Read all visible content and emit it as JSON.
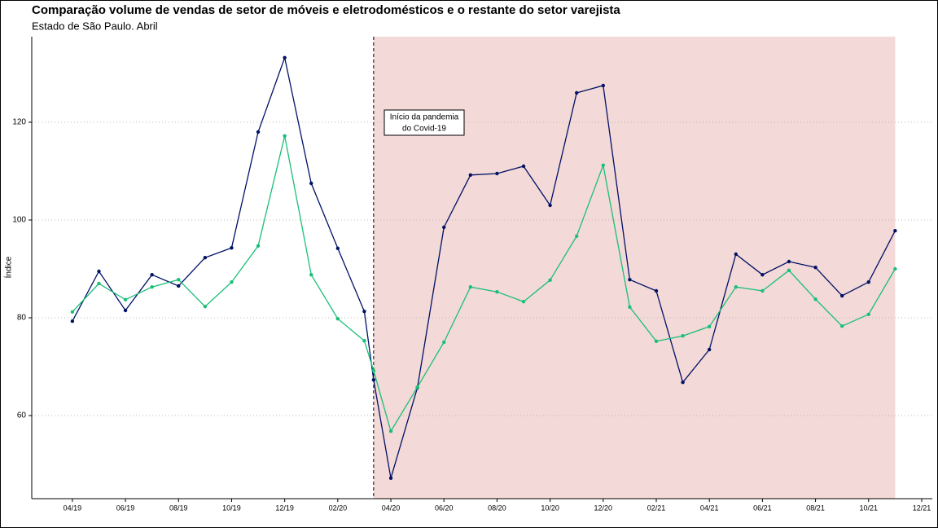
{
  "chart_data": {
    "type": "line",
    "title": "Comparação volume de vendas de setor de móveis e eletrodomésticos e o restante do setor varejista",
    "subtitle": "Estado de São Paulo. Abril",
    "y_label": "Índice",
    "annotation": [
      "Início da pandemia",
      "do Covid-19"
    ],
    "vline": 11.35,
    "shade": [
      11.35,
      31
    ],
    "shade_color": "#f3d9d7",
    "x": [
      0,
      1,
      2,
      3,
      4,
      5,
      6,
      7,
      8,
      9,
      10,
      11,
      11.35,
      12,
      13,
      14,
      15,
      16,
      17,
      18,
      19,
      20,
      21,
      22,
      23,
      24,
      25,
      26,
      27,
      28,
      29,
      30,
      31
    ],
    "series": [
      {
        "color": "#001166",
        "values": [
          79.3,
          89.5,
          81.5,
          88.8,
          86.5,
          92.3,
          94.3,
          118,
          133.2,
          107.5,
          94.2,
          81.3,
          67.3,
          47.2,
          65.7,
          98.5,
          109.2,
          109.5,
          111,
          103,
          126,
          127.5,
          87.8,
          85.5,
          66.8,
          73.5,
          93,
          88.8,
          91.5,
          90.3,
          84.5,
          87.3,
          97.8
        ]
      },
      {
        "color": "#19bf78",
        "values": [
          81.2,
          87,
          83.7,
          86.3,
          87.8,
          82.3,
          87.3,
          94.7,
          117.2,
          88.8,
          79.8,
          75.3,
          69.2,
          56.8,
          65.8,
          75,
          86.3,
          85.3,
          83.3,
          87.7,
          96.7,
          111.2,
          82.2,
          75.2,
          76.3,
          78.2,
          86.3,
          85.5,
          89.7,
          83.8,
          78.3,
          80.7,
          90
        ]
      }
    ],
    "xlim": [
      -1.53,
      32.4
    ],
    "xticks": [
      {
        "value": 0,
        "label": "04/19"
      },
      {
        "value": 2,
        "label": "06/19"
      },
      {
        "value": 4,
        "label": "08/19"
      },
      {
        "value": 6,
        "label": "10/19"
      },
      {
        "value": 8,
        "label": "12/19"
      },
      {
        "value": 10,
        "label": "02/20"
      },
      {
        "value": 12,
        "label": "04/20"
      },
      {
        "value": 14,
        "label": "06/20"
      },
      {
        "value": 16,
        "label": "08/20"
      },
      {
        "value": 18,
        "label": "10/20"
      },
      {
        "value": 20,
        "label": "12/20"
      },
      {
        "value": 22,
        "label": "02/21"
      },
      {
        "value": 24,
        "label": "04/21"
      },
      {
        "value": 26,
        "label": "06/21"
      },
      {
        "value": 28,
        "label": "08/21"
      },
      {
        "value": 30,
        "label": "10/21"
      },
      {
        "value": 32,
        "label": "12/21"
      }
    ],
    "ylim": [
      43,
      137.5
    ],
    "yticks": [
      60,
      80,
      100,
      120
    ],
    "grid": true
  }
}
